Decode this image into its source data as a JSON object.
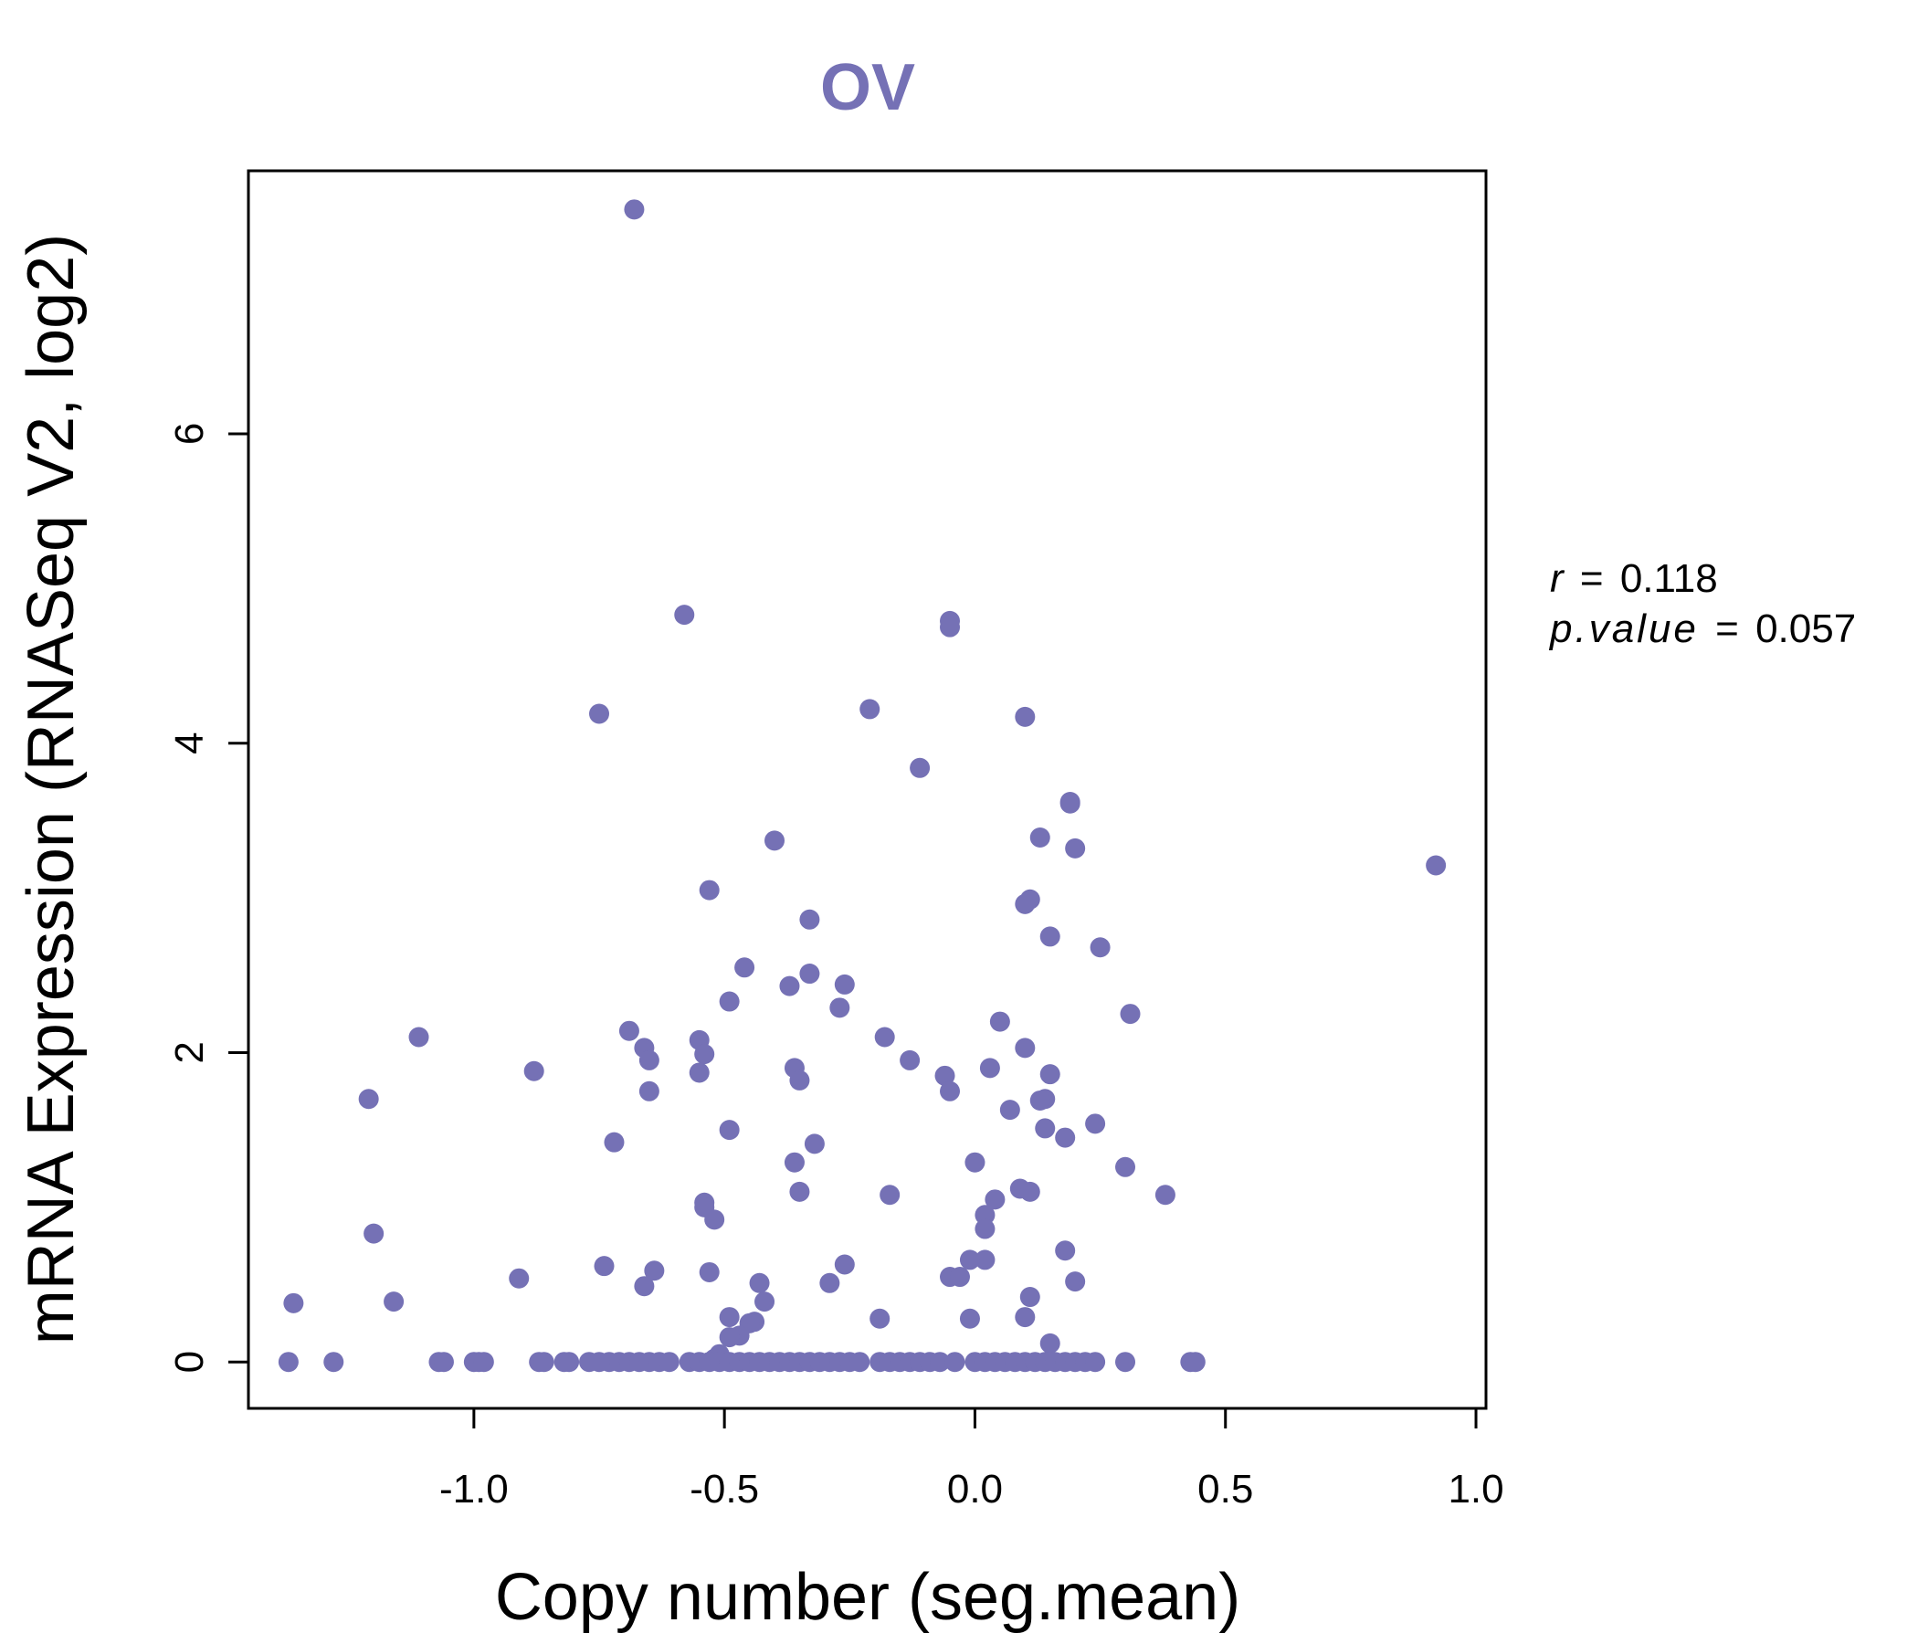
{
  "colors": {
    "accent": "#7571b5",
    "axis": "#000000",
    "background": "#ffffff"
  },
  "stats": {
    "r_label": "r",
    "r_value": "0.118",
    "p_label": "p.value",
    "p_value": "0.057",
    "equals": "="
  },
  "chart_data": {
    "type": "scatter",
    "title": "OV",
    "xlabel": "Copy number (seg.mean)",
    "ylabel": "mRNA Expression (RNASeq V2, log2)",
    "xlim": [
      -1.45,
      1.02
    ],
    "ylim": [
      -0.3,
      7.7
    ],
    "x_ticks": [
      -1.0,
      -0.5,
      0.0,
      0.5,
      1.0
    ],
    "x_tick_labels": [
      "-1.0",
      "-0.5",
      "0.0",
      "0.5",
      "1.0"
    ],
    "y_ticks": [
      0,
      2,
      4,
      6
    ],
    "y_tick_labels": [
      "0",
      "2",
      "4",
      "6"
    ],
    "grid": false,
    "points": [
      [
        -0.68,
        7.45
      ],
      [
        -0.58,
        4.83
      ],
      [
        -0.05,
        4.79
      ],
      [
        -0.05,
        4.75
      ],
      [
        -0.75,
        4.19
      ],
      [
        -0.21,
        4.22
      ],
      [
        0.1,
        4.17
      ],
      [
        -0.11,
        3.84
      ],
      [
        0.19,
        3.62
      ],
      [
        0.19,
        3.61
      ],
      [
        0.2,
        3.32
      ],
      [
        0.13,
        3.39
      ],
      [
        -0.4,
        3.37
      ],
      [
        0.92,
        3.21
      ],
      [
        -0.53,
        3.05
      ],
      [
        0.11,
        2.99
      ],
      [
        0.1,
        2.96
      ],
      [
        -0.33,
        2.86
      ],
      [
        0.15,
        2.75
      ],
      [
        0.25,
        2.68
      ],
      [
        -0.46,
        2.55
      ],
      [
        -0.33,
        2.51
      ],
      [
        -0.26,
        2.44
      ],
      [
        -0.37,
        2.43
      ],
      [
        -0.49,
        2.33
      ],
      [
        -0.27,
        2.29
      ],
      [
        0.31,
        2.25
      ],
      [
        0.05,
        2.2
      ],
      [
        -1.11,
        2.1
      ],
      [
        -0.69,
        2.14
      ],
      [
        -0.55,
        2.08
      ],
      [
        -0.18,
        2.1
      ],
      [
        -0.66,
        2.03
      ],
      [
        0.1,
        2.03
      ],
      [
        -0.54,
        1.99
      ],
      [
        -0.65,
        1.95
      ],
      [
        -0.13,
        1.95
      ],
      [
        -0.36,
        1.9
      ],
      [
        0.03,
        1.9
      ],
      [
        -0.88,
        1.88
      ],
      [
        -0.55,
        1.87
      ],
      [
        -0.06,
        1.85
      ],
      [
        0.15,
        1.86
      ],
      [
        -0.35,
        1.82
      ],
      [
        -0.65,
        1.75
      ],
      [
        -0.05,
        1.75
      ],
      [
        -1.21,
        1.7
      ],
      [
        0.14,
        1.7
      ],
      [
        0.13,
        1.69
      ],
      [
        0.07,
        1.63
      ],
      [
        0.24,
        1.54
      ],
      [
        0.14,
        1.51
      ],
      [
        -0.49,
        1.5
      ],
      [
        0.18,
        1.45
      ],
      [
        -0.72,
        1.42
      ],
      [
        -0.32,
        1.41
      ],
      [
        0.0,
        1.29
      ],
      [
        -0.36,
        1.29
      ],
      [
        0.3,
        1.26
      ],
      [
        0.09,
        1.12
      ],
      [
        0.11,
        1.1
      ],
      [
        -0.35,
        1.1
      ],
      [
        -0.17,
        1.08
      ],
      [
        0.38,
        1.08
      ],
      [
        0.04,
        1.05
      ],
      [
        -0.54,
        1.03
      ],
      [
        -0.54,
        1.0
      ],
      [
        0.02,
        0.95
      ],
      [
        -0.52,
        0.92
      ],
      [
        0.02,
        0.86
      ],
      [
        -1.2,
        0.83
      ],
      [
        0.18,
        0.72
      ],
      [
        0.02,
        0.66
      ],
      [
        -0.01,
        0.66
      ],
      [
        -0.26,
        0.63
      ],
      [
        -0.74,
        0.62
      ],
      [
        -0.64,
        0.59
      ],
      [
        -0.53,
        0.58
      ],
      [
        -0.05,
        0.55
      ],
      [
        -0.03,
        0.55
      ],
      [
        -0.91,
        0.54
      ],
      [
        -0.43,
        0.51
      ],
      [
        -0.29,
        0.51
      ],
      [
        0.2,
        0.52
      ],
      [
        -0.66,
        0.49
      ],
      [
        0.11,
        0.42
      ],
      [
        -0.42,
        0.39
      ],
      [
        -1.36,
        0.38
      ],
      [
        -1.16,
        0.39
      ],
      [
        -0.49,
        0.29
      ],
      [
        -0.19,
        0.28
      ],
      [
        0.1,
        0.29
      ],
      [
        -0.01,
        0.28
      ],
      [
        -0.44,
        0.26
      ],
      [
        -0.45,
        0.25
      ],
      [
        -0.47,
        0.17
      ],
      [
        -0.49,
        0.16
      ],
      [
        0.15,
        0.12
      ],
      [
        -0.51,
        0.05
      ],
      [
        -0.52,
        0.02
      ],
      [
        -1.37,
        0.0
      ],
      [
        -1.28,
        0.0
      ],
      [
        -1.07,
        0.0
      ],
      [
        -1.06,
        0.0
      ],
      [
        -1.0,
        0.0
      ],
      [
        -0.99,
        0.0
      ],
      [
        -0.98,
        0.0
      ],
      [
        -0.87,
        0.0
      ],
      [
        -0.86,
        0.0
      ],
      [
        -0.82,
        0.0
      ],
      [
        -0.81,
        0.0
      ],
      [
        -0.77,
        0.0
      ],
      [
        -0.75,
        0.0
      ],
      [
        -0.73,
        0.0
      ],
      [
        -0.71,
        0.0
      ],
      [
        -0.69,
        0.0
      ],
      [
        -0.67,
        0.0
      ],
      [
        -0.65,
        0.0
      ],
      [
        -0.63,
        0.0
      ],
      [
        -0.61,
        0.0
      ],
      [
        -0.57,
        0.0
      ],
      [
        -0.55,
        0.0
      ],
      [
        -0.53,
        0.0
      ],
      [
        -0.51,
        0.0
      ],
      [
        -0.49,
        0.0
      ],
      [
        -0.47,
        0.0
      ],
      [
        -0.45,
        0.0
      ],
      [
        -0.43,
        0.0
      ],
      [
        -0.41,
        0.0
      ],
      [
        -0.39,
        0.0
      ],
      [
        -0.37,
        0.0
      ],
      [
        -0.35,
        0.0
      ],
      [
        -0.33,
        0.0
      ],
      [
        -0.31,
        0.0
      ],
      [
        -0.29,
        0.0
      ],
      [
        -0.27,
        0.0
      ],
      [
        -0.25,
        0.0
      ],
      [
        -0.23,
        0.0
      ],
      [
        -0.19,
        0.0
      ],
      [
        -0.17,
        0.0
      ],
      [
        -0.15,
        0.0
      ],
      [
        -0.13,
        0.0
      ],
      [
        -0.11,
        0.0
      ],
      [
        -0.09,
        0.0
      ],
      [
        -0.07,
        0.0
      ],
      [
        -0.04,
        0.0
      ],
      [
        0.0,
        0.0
      ],
      [
        0.02,
        0.0
      ],
      [
        0.04,
        0.0
      ],
      [
        0.06,
        0.0
      ],
      [
        0.08,
        0.0
      ],
      [
        0.1,
        0.0
      ],
      [
        0.12,
        0.0
      ],
      [
        0.14,
        0.0
      ],
      [
        0.16,
        0.0
      ],
      [
        0.18,
        0.0
      ],
      [
        0.2,
        0.0
      ],
      [
        0.22,
        0.0
      ],
      [
        0.24,
        0.0
      ],
      [
        0.3,
        0.0
      ],
      [
        0.43,
        0.0
      ],
      [
        0.44,
        0.0
      ]
    ]
  }
}
